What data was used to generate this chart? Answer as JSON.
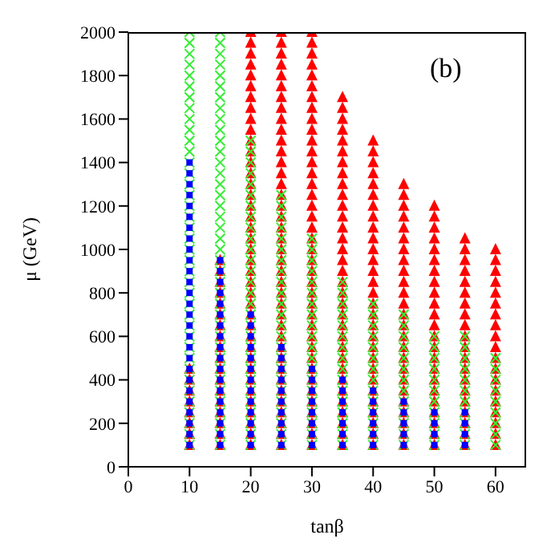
{
  "chart_data": {
    "type": "scatter",
    "xlabel": "tanβ",
    "ylabel": "μ (GeV)",
    "annotations": [
      "(b)"
    ],
    "xlim": [
      0,
      65
    ],
    "xticks": [
      0,
      10,
      20,
      30,
      40,
      50,
      60
    ],
    "ylim": [
      0,
      2000
    ],
    "yticks": [
      0,
      200,
      400,
      600,
      800,
      1000,
      1200,
      1400,
      1600,
      1800,
      2000
    ],
    "grid": false,
    "legend": false,
    "series": [
      {
        "color": "#ff0000",
        "marker": "triangle",
        "x": [
          10,
          10,
          10,
          10,
          10,
          10,
          10,
          10,
          15,
          15,
          15,
          15,
          15,
          15,
          15,
          15,
          15,
          15,
          15,
          15,
          15,
          15,
          15,
          15,
          15,
          15,
          20,
          20,
          20,
          20,
          20,
          20,
          20,
          20,
          20,
          20,
          20,
          20,
          20,
          20,
          20,
          20,
          20,
          20,
          20,
          20,
          20,
          20,
          20,
          20,
          20,
          20,
          20,
          20,
          20,
          20,
          20,
          20,
          20,
          20,
          20,
          20,
          20,
          20,
          20,
          25,
          25,
          25,
          25,
          25,
          25,
          25,
          25,
          25,
          25,
          25,
          25,
          25,
          25,
          25,
          25,
          25,
          25,
          25,
          25,
          25,
          25,
          25,
          25,
          25,
          25,
          25,
          25,
          25,
          25,
          25,
          25,
          25,
          25,
          25,
          25,
          25,
          25,
          25,
          30,
          30,
          30,
          30,
          30,
          30,
          30,
          30,
          30,
          30,
          30,
          30,
          30,
          30,
          30,
          30,
          30,
          30,
          30,
          30,
          30,
          30,
          30,
          30,
          30,
          30,
          30,
          30,
          30,
          30,
          30,
          30,
          30,
          30,
          30,
          30,
          30,
          30,
          30,
          35,
          35,
          35,
          35,
          35,
          35,
          35,
          35,
          35,
          35,
          35,
          35,
          35,
          35,
          35,
          35,
          35,
          35,
          35,
          35,
          35,
          35,
          35,
          35,
          35,
          35,
          35,
          35,
          35,
          35,
          35,
          35,
          35,
          40,
          40,
          40,
          40,
          40,
          40,
          40,
          40,
          40,
          40,
          40,
          40,
          40,
          40,
          40,
          40,
          40,
          40,
          40,
          40,
          40,
          40,
          40,
          40,
          40,
          40,
          40,
          40,
          40,
          45,
          45,
          45,
          45,
          45,
          45,
          45,
          45,
          45,
          45,
          45,
          45,
          45,
          45,
          45,
          45,
          45,
          45,
          45,
          45,
          45,
          45,
          45,
          45,
          45,
          50,
          50,
          50,
          50,
          50,
          50,
          50,
          50,
          50,
          50,
          50,
          50,
          50,
          50,
          50,
          50,
          50,
          50,
          50,
          50,
          50,
          50,
          50,
          55,
          55,
          55,
          55,
          55,
          55,
          55,
          55,
          55,
          55,
          55,
          55,
          55,
          55,
          55,
          55,
          55,
          55,
          55,
          55,
          60,
          60,
          60,
          60,
          60,
          60,
          60,
          60,
          60,
          60,
          60,
          60,
          60,
          60,
          60,
          60,
          60,
          60,
          60
        ],
        "values": [
          100,
          150,
          200,
          250,
          300,
          350,
          400,
          450,
          100,
          150,
          200,
          250,
          300,
          350,
          400,
          450,
          500,
          550,
          600,
          650,
          700,
          750,
          800,
          850,
          900,
          950,
          100,
          150,
          200,
          250,
          300,
          350,
          400,
          450,
          500,
          550,
          600,
          650,
          700,
          750,
          800,
          850,
          900,
          950,
          1000,
          1050,
          1100,
          1150,
          1200,
          1250,
          1300,
          1350,
          1400,
          1450,
          1500,
          1550,
          1600,
          1650,
          1700,
          1750,
          1800,
          1850,
          1900,
          1950,
          2000,
          100,
          150,
          200,
          250,
          300,
          350,
          400,
          450,
          500,
          550,
          600,
          650,
          700,
          750,
          800,
          850,
          900,
          950,
          1000,
          1050,
          1100,
          1150,
          1200,
          1250,
          1300,
          1350,
          1400,
          1450,
          1500,
          1550,
          1600,
          1650,
          1700,
          1750,
          1800,
          1850,
          1900,
          1950,
          2000,
          100,
          150,
          200,
          250,
          300,
          350,
          400,
          450,
          500,
          550,
          600,
          650,
          700,
          750,
          800,
          850,
          900,
          950,
          1000,
          1050,
          1100,
          1150,
          1200,
          1250,
          1300,
          1350,
          1400,
          1450,
          1500,
          1550,
          1600,
          1650,
          1700,
          1750,
          1800,
          1850,
          1900,
          1950,
          2000,
          100,
          150,
          200,
          250,
          300,
          350,
          400,
          450,
          500,
          550,
          600,
          650,
          700,
          750,
          800,
          850,
          900,
          950,
          1000,
          1050,
          1100,
          1150,
          1200,
          1250,
          1300,
          1350,
          1400,
          1450,
          1500,
          1550,
          1600,
          1650,
          1700,
          100,
          150,
          200,
          250,
          300,
          350,
          400,
          450,
          500,
          550,
          600,
          650,
          700,
          750,
          800,
          850,
          900,
          950,
          1000,
          1050,
          1100,
          1150,
          1200,
          1250,
          1300,
          1350,
          1400,
          1450,
          1500,
          100,
          150,
          200,
          250,
          300,
          350,
          400,
          450,
          500,
          550,
          600,
          650,
          700,
          750,
          800,
          850,
          900,
          950,
          1000,
          1050,
          1100,
          1150,
          1200,
          1250,
          1300,
          100,
          150,
          200,
          250,
          300,
          350,
          400,
          450,
          500,
          550,
          600,
          650,
          700,
          750,
          800,
          850,
          900,
          950,
          1000,
          1050,
          1100,
          1150,
          1200,
          100,
          150,
          200,
          250,
          300,
          350,
          400,
          450,
          500,
          550,
          600,
          650,
          700,
          750,
          800,
          850,
          900,
          950,
          1000,
          1050,
          100,
          150,
          200,
          250,
          300,
          350,
          400,
          450,
          500,
          550,
          600,
          650,
          700,
          750,
          800,
          850,
          900,
          950,
          1000
        ]
      },
      {
        "color": "#33ee33",
        "marker": "cross",
        "x": [
          10,
          10,
          10,
          10,
          10,
          10,
          10,
          10,
          10,
          10,
          10,
          10,
          10,
          10,
          10,
          10,
          10,
          10,
          10,
          10,
          10,
          10,
          10,
          10,
          10,
          10,
          10,
          10,
          10,
          10,
          10,
          10,
          10,
          10,
          10,
          10,
          10,
          10,
          10,
          15,
          15,
          15,
          15,
          15,
          15,
          15,
          15,
          15,
          15,
          15,
          15,
          15,
          15,
          15,
          15,
          15,
          15,
          15,
          15,
          15,
          15,
          15,
          15,
          15,
          15,
          15,
          15,
          15,
          15,
          15,
          15,
          15,
          15,
          15,
          15,
          15,
          15,
          15,
          20,
          20,
          20,
          20,
          20,
          20,
          20,
          20,
          20,
          20,
          20,
          20,
          20,
          20,
          20,
          20,
          20,
          20,
          20,
          20,
          20,
          20,
          20,
          20,
          20,
          20,
          20,
          20,
          20,
          25,
          25,
          25,
          25,
          25,
          25,
          25,
          25,
          25,
          25,
          25,
          25,
          25,
          25,
          25,
          25,
          25,
          25,
          25,
          25,
          25,
          25,
          25,
          25,
          30,
          30,
          30,
          30,
          30,
          30,
          30,
          30,
          30,
          30,
          30,
          30,
          30,
          30,
          30,
          30,
          30,
          30,
          30,
          30,
          35,
          35,
          35,
          35,
          35,
          35,
          35,
          35,
          35,
          35,
          35,
          35,
          35,
          35,
          35,
          35,
          40,
          40,
          40,
          40,
          40,
          40,
          40,
          40,
          40,
          40,
          40,
          40,
          40,
          40,
          45,
          45,
          45,
          45,
          45,
          45,
          45,
          45,
          45,
          45,
          45,
          45,
          45,
          50,
          50,
          50,
          50,
          50,
          50,
          50,
          50,
          50,
          50,
          50,
          55,
          55,
          55,
          55,
          55,
          55,
          55,
          55,
          55,
          55,
          55,
          60,
          60,
          60,
          60,
          60,
          60,
          60,
          60,
          60
        ],
        "values": [
          100,
          150,
          200,
          250,
          300,
          350,
          400,
          450,
          500,
          550,
          600,
          650,
          700,
          750,
          800,
          850,
          900,
          950,
          1000,
          1050,
          1100,
          1150,
          1200,
          1250,
          1300,
          1350,
          1400,
          1450,
          1500,
          1550,
          1600,
          1650,
          1700,
          1750,
          1800,
          1850,
          1900,
          1950,
          2000,
          100,
          150,
          200,
          250,
          300,
          350,
          400,
          450,
          500,
          550,
          600,
          650,
          700,
          750,
          800,
          850,
          900,
          950,
          1000,
          1050,
          1100,
          1150,
          1200,
          1250,
          1300,
          1350,
          1400,
          1450,
          1500,
          1550,
          1600,
          1650,
          1700,
          1750,
          1800,
          1850,
          1900,
          1950,
          2000,
          100,
          150,
          200,
          250,
          300,
          350,
          400,
          450,
          500,
          550,
          600,
          650,
          700,
          750,
          800,
          850,
          900,
          950,
          1000,
          1050,
          1100,
          1150,
          1200,
          1250,
          1300,
          1350,
          1400,
          1450,
          1500,
          100,
          150,
          200,
          250,
          300,
          350,
          400,
          450,
          500,
          550,
          600,
          650,
          700,
          750,
          800,
          850,
          900,
          950,
          1000,
          1050,
          1100,
          1150,
          1200,
          1250,
          100,
          150,
          200,
          250,
          300,
          350,
          400,
          450,
          500,
          550,
          600,
          650,
          700,
          750,
          800,
          850,
          900,
          950,
          1000,
          1050,
          100,
          150,
          200,
          250,
          300,
          350,
          400,
          450,
          500,
          550,
          600,
          650,
          700,
          750,
          800,
          850,
          100,
          150,
          200,
          250,
          300,
          350,
          400,
          450,
          500,
          550,
          600,
          650,
          700,
          750,
          100,
          150,
          200,
          250,
          300,
          350,
          400,
          450,
          500,
          550,
          600,
          650,
          700,
          100,
          150,
          200,
          250,
          300,
          350,
          400,
          450,
          500,
          550,
          600,
          100,
          150,
          200,
          250,
          300,
          350,
          400,
          450,
          500,
          550,
          600,
          100,
          150,
          200,
          250,
          300,
          350,
          400,
          450,
          500
        ]
      },
      {
        "color": "#0000ff",
        "marker": "square",
        "x": [
          10,
          10,
          10,
          10,
          10,
          10,
          10,
          10,
          10,
          10,
          10,
          10,
          10,
          10,
          10,
          10,
          10,
          10,
          10,
          10,
          10,
          10,
          10,
          10,
          10,
          10,
          10,
          15,
          15,
          15,
          15,
          15,
          15,
          15,
          15,
          15,
          15,
          15,
          15,
          15,
          15,
          15,
          15,
          15,
          15,
          20,
          20,
          20,
          20,
          20,
          20,
          20,
          20,
          20,
          20,
          20,
          20,
          20,
          25,
          25,
          25,
          25,
          25,
          25,
          25,
          25,
          25,
          25,
          30,
          30,
          30,
          30,
          30,
          30,
          30,
          30,
          35,
          35,
          35,
          35,
          35,
          35,
          35,
          40,
          40,
          40,
          40,
          40,
          40,
          45,
          45,
          45,
          45,
          45,
          50,
          50,
          50,
          50,
          55,
          55,
          55,
          55
        ],
        "values": [
          100,
          150,
          200,
          250,
          300,
          350,
          400,
          450,
          500,
          550,
          600,
          650,
          700,
          750,
          800,
          850,
          900,
          950,
          1000,
          1050,
          1100,
          1150,
          1200,
          1250,
          1300,
          1350,
          1400,
          100,
          150,
          200,
          250,
          300,
          350,
          400,
          450,
          500,
          550,
          600,
          650,
          700,
          750,
          800,
          850,
          900,
          950,
          100,
          150,
          200,
          250,
          300,
          350,
          400,
          450,
          500,
          550,
          600,
          650,
          700,
          100,
          150,
          200,
          250,
          300,
          350,
          400,
          450,
          500,
          550,
          100,
          150,
          200,
          250,
          300,
          350,
          400,
          450,
          100,
          150,
          200,
          250,
          300,
          350,
          400,
          100,
          150,
          200,
          250,
          300,
          350,
          100,
          150,
          200,
          250,
          300,
          100,
          150,
          200,
          250,
          100,
          150,
          200,
          250
        ]
      }
    ]
  }
}
